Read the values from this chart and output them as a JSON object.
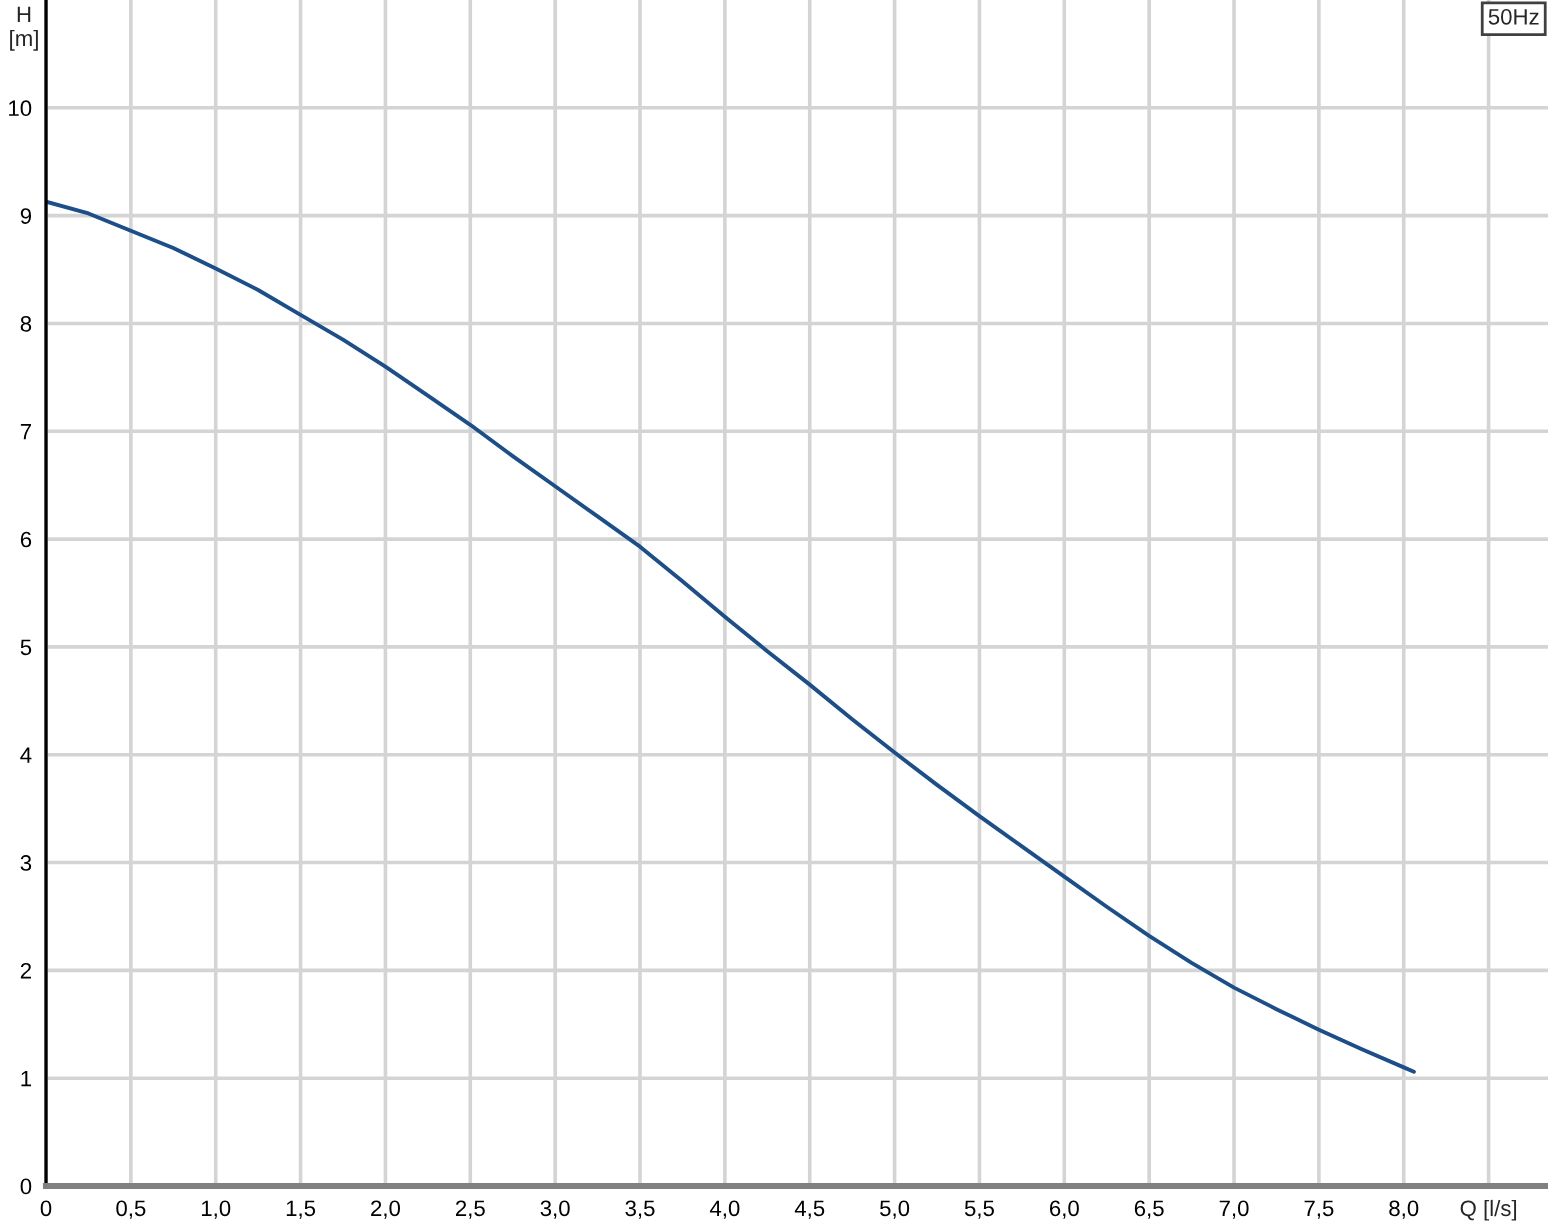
{
  "chart_data": {
    "type": "line",
    "xlabel": "Q [l/s]",
    "ylabel": "H\n[m]",
    "annotations": [
      "50Hz"
    ],
    "x": [
      0,
      0.25,
      0.5,
      0.75,
      1.0,
      1.25,
      1.5,
      1.75,
      2.0,
      2.25,
      2.5,
      2.75,
      3.0,
      3.25,
      3.5,
      3.75,
      4.0,
      4.25,
      4.5,
      4.75,
      5.0,
      5.25,
      5.5,
      5.75,
      6.0,
      6.25,
      6.5,
      6.75,
      7.0,
      7.25,
      7.5,
      7.75,
      8.0,
      8.06
    ],
    "series": [
      {
        "color": "#1c4f8a",
        "values": [
          9.13,
          9.02,
          8.86,
          8.7,
          8.51,
          8.31,
          8.08,
          7.85,
          7.6,
          7.33,
          7.06,
          6.77,
          6.49,
          6.21,
          5.93,
          5.61,
          5.28,
          4.96,
          4.65,
          4.33,
          4.02,
          3.72,
          3.43,
          3.15,
          2.87,
          2.59,
          2.32,
          2.07,
          1.84,
          1.64,
          1.45,
          1.27,
          1.1,
          1.06
        ]
      }
    ],
    "xlim": [
      0,
      8.85
    ],
    "ylim": [
      0,
      11
    ],
    "xticks": [
      0,
      {
        "value": 0.5,
        "label": "0,5"
      },
      {
        "value": 1.0,
        "label": "1,0"
      },
      {
        "value": 1.5,
        "label": "1,5"
      },
      {
        "value": 2.0,
        "label": "2,0"
      },
      {
        "value": 2.5,
        "label": "2,5"
      },
      {
        "value": 3.0,
        "label": "3,0"
      },
      {
        "value": 3.5,
        "label": "3,5"
      },
      {
        "value": 4.0,
        "label": "4,0"
      },
      {
        "value": 4.5,
        "label": "4,5"
      },
      {
        "value": 5.0,
        "label": "5,0"
      },
      {
        "value": 5.5,
        "label": "5,5"
      },
      {
        "value": 6.0,
        "label": "6,0"
      },
      {
        "value": 6.5,
        "label": "6,5"
      },
      {
        "value": 7.0,
        "label": "7,0"
      },
      {
        "value": 7.5,
        "label": "7,5"
      },
      {
        "value": 8.0,
        "label": "8,0"
      },
      {
        "value": 8.5,
        "label": null
      }
    ],
    "yticks": [
      0,
      1,
      2,
      3,
      4,
      5,
      6,
      7,
      8,
      9,
      10
    ],
    "grid": true
  }
}
